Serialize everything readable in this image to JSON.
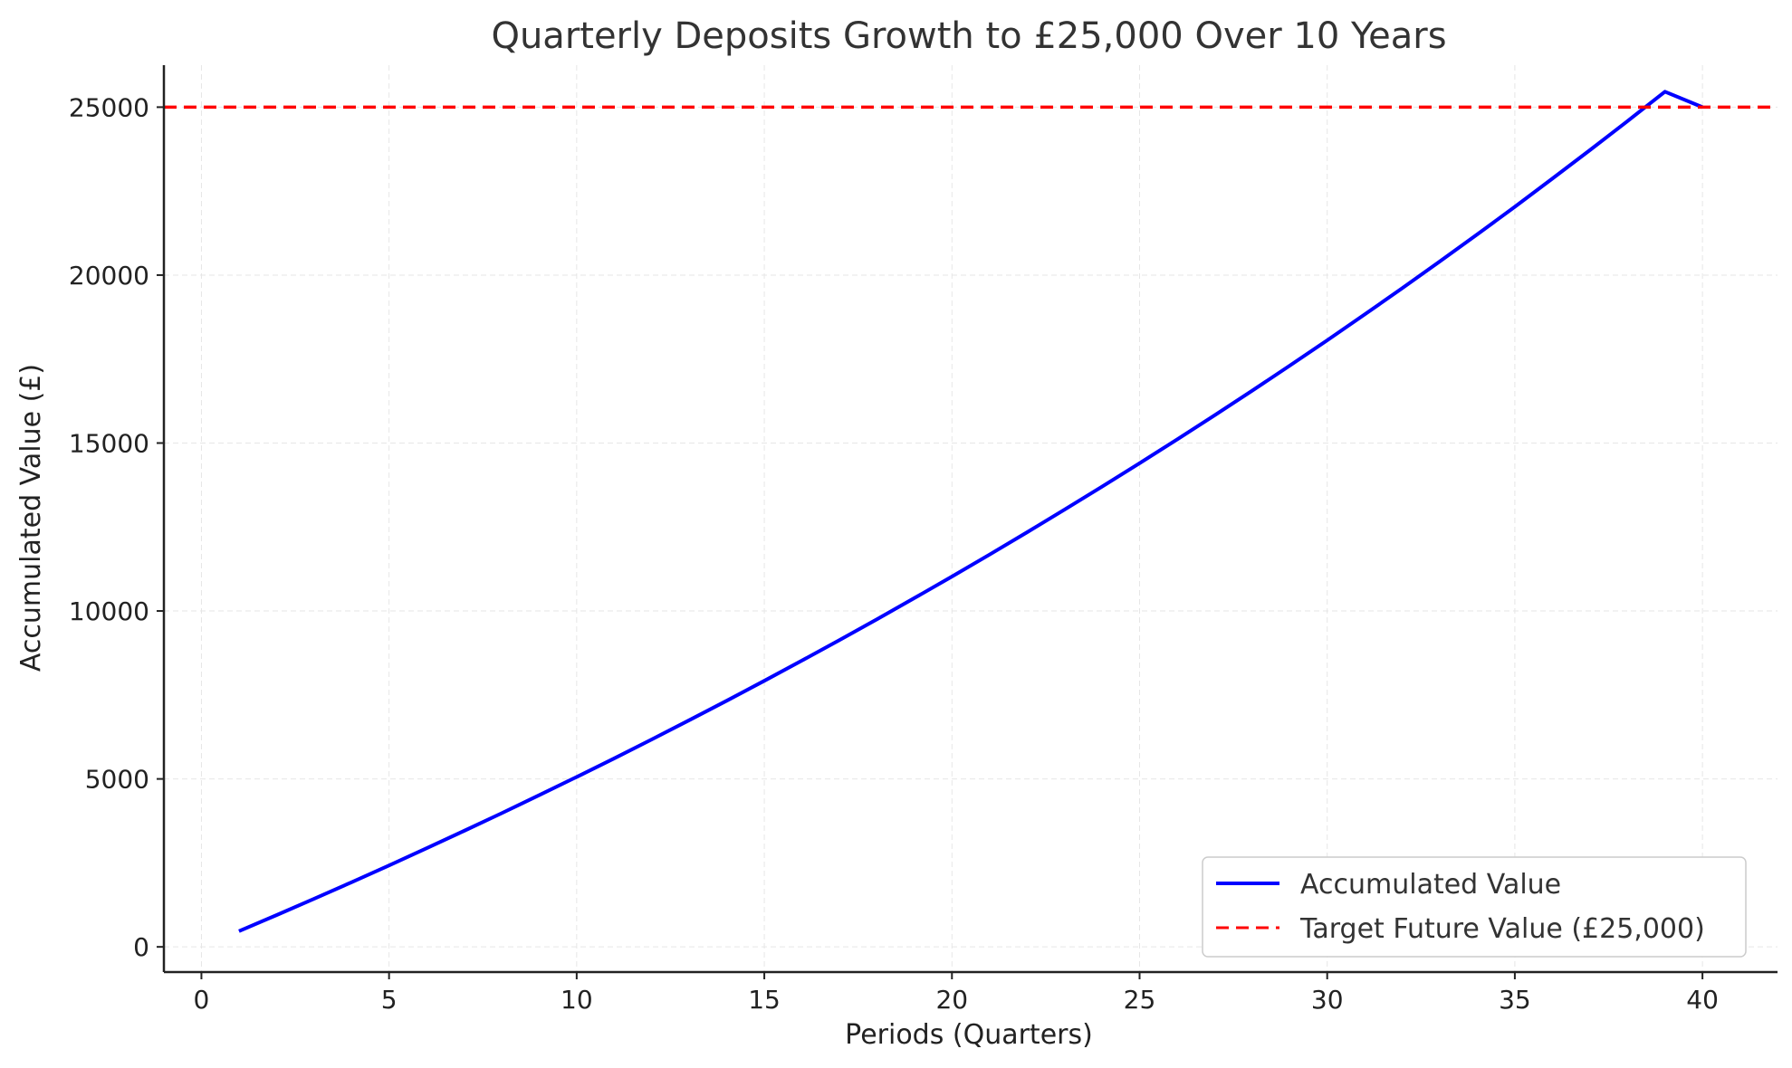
{
  "chart_data": {
    "type": "line",
    "title": "Quarterly Deposits Growth to £25,000 Over 10 Years",
    "xlabel": "Periods (Quarters)",
    "ylabel": "Accumulated Value (£)",
    "xlim": [
      -1,
      42
    ],
    "ylim": [
      -750,
      26250
    ],
    "xticks": [
      0,
      5,
      10,
      15,
      20,
      25,
      30,
      35,
      40
    ],
    "yticks": [
      0,
      5000,
      10000,
      15000,
      20000,
      25000
    ],
    "grid": true,
    "legend_position": "lower-right",
    "series": [
      {
        "name": "Accumulated Value",
        "color": "#0000ff",
        "style": "solid",
        "x": [
          1,
          2,
          3,
          4,
          5,
          6,
          7,
          8,
          9,
          10,
          11,
          12,
          13,
          14,
          15,
          16,
          17,
          18,
          19,
          20,
          21,
          22,
          23,
          24,
          25,
          26,
          27,
          28,
          29,
          30,
          31,
          32,
          33,
          34,
          35,
          36,
          37,
          38,
          39,
          40
        ],
        "y": [
          469,
          946,
          1431,
          1924,
          2425,
          2935,
          3453,
          3980,
          4515,
          5060,
          5613,
          6176,
          6748,
          7329,
          7920,
          8521,
          9132,
          9753,
          10384,
          11026,
          11678,
          12342,
          13016,
          13701,
          14398,
          15106,
          15826,
          16558,
          17303,
          18059,
          18828,
          19610,
          20405,
          21213,
          22034,
          22870,
          23719,
          24582,
          25460,
          25000
        ]
      },
      {
        "name": "Target Future Value (£25,000)",
        "color": "#ff0000",
        "style": "dashed",
        "y_constant": 25000
      }
    ]
  }
}
